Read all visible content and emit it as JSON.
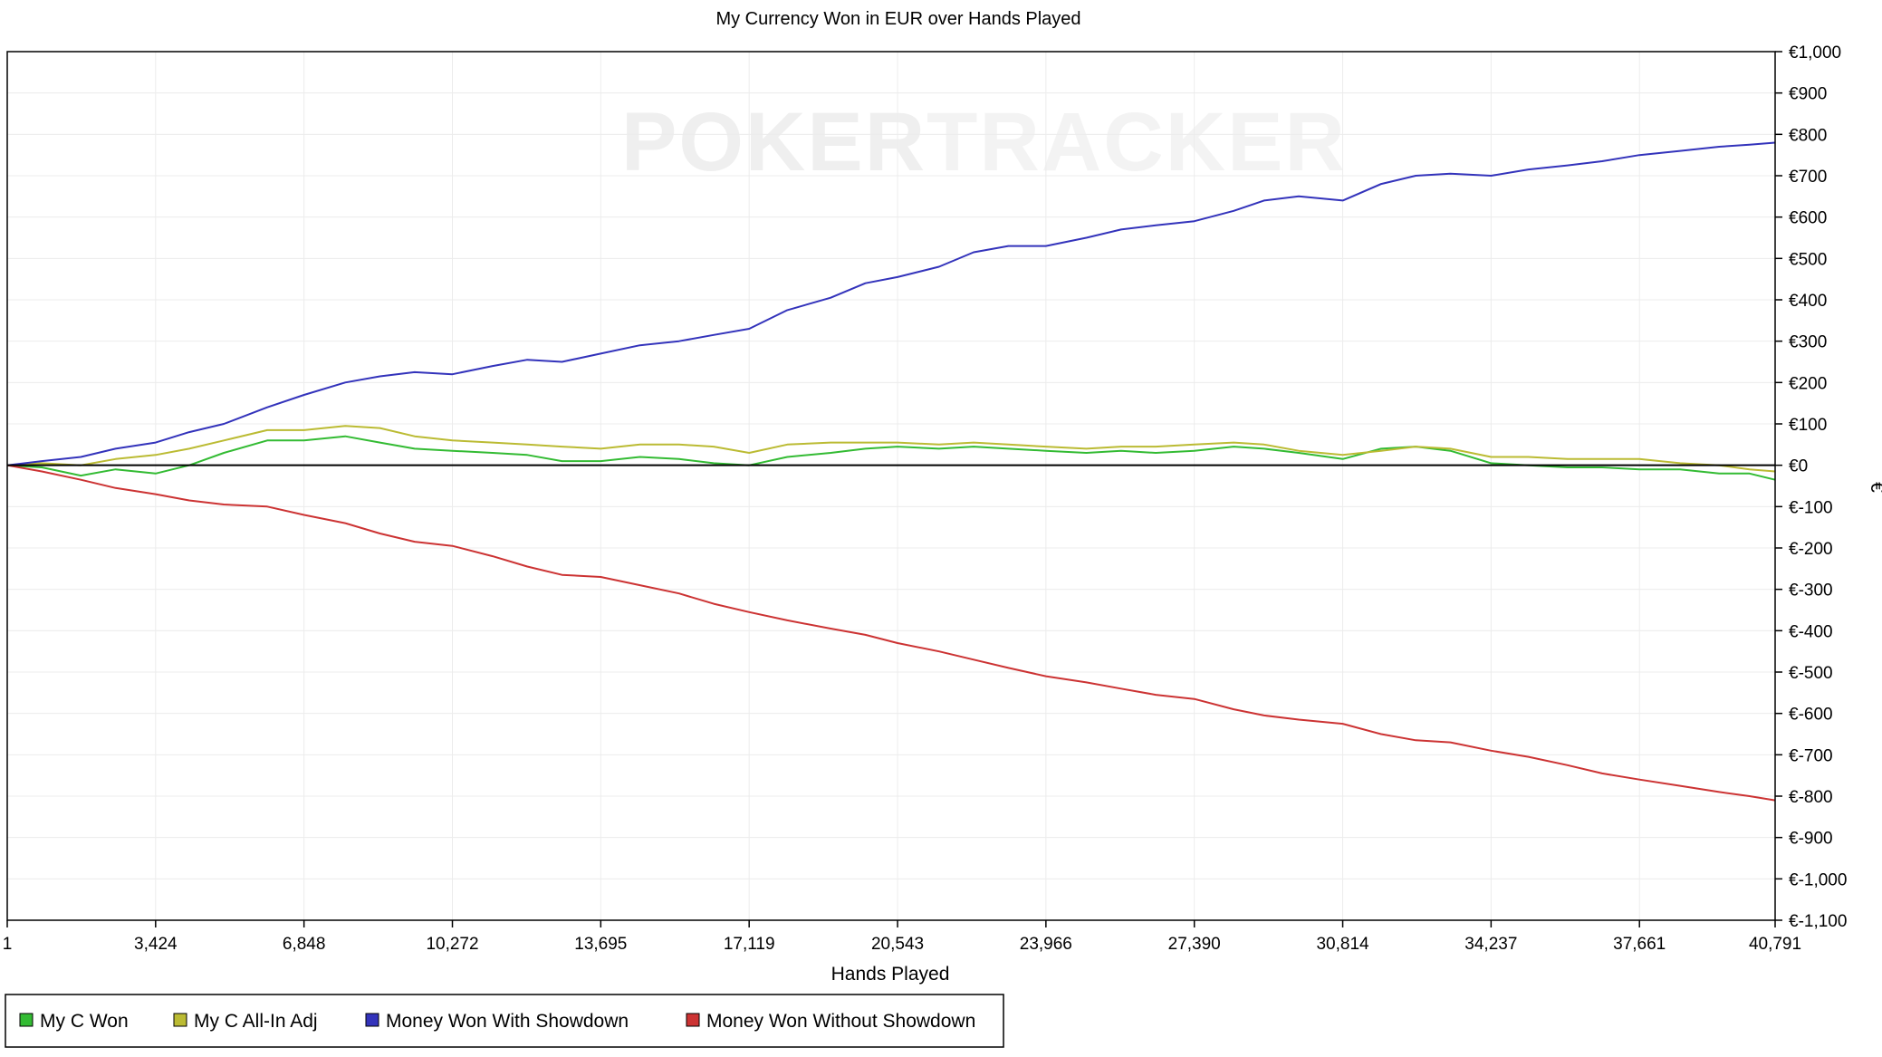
{
  "chart_data": {
    "type": "line",
    "title": "My Currency Won in EUR over Hands Played",
    "xlabel": "Hands Played",
    "ylabel": "€",
    "xlim": [
      1,
      40791
    ],
    "ylim": [
      -1100,
      1000
    ],
    "x_ticks": [
      1,
      3424,
      6848,
      10272,
      13695,
      17119,
      20543,
      23966,
      27390,
      30814,
      34237,
      37661,
      40791
    ],
    "x_tick_labels": [
      "1",
      "3,424",
      "6,848",
      "10,272",
      "13,695",
      "17,119",
      "20,543",
      "23,966",
      "27,390",
      "30,814",
      "34,237",
      "37,661",
      "40,791"
    ],
    "y_ticks": [
      1000,
      900,
      800,
      700,
      600,
      500,
      400,
      300,
      200,
      100,
      0,
      -100,
      -200,
      -300,
      -400,
      -500,
      -600,
      -700,
      -800,
      -900,
      -1000,
      -1100
    ],
    "y_tick_labels": [
      "€1,000",
      "€900",
      "€800",
      "€700",
      "€600",
      "€500",
      "€400",
      "€300",
      "€200",
      "€100",
      "€0",
      "€-100",
      "€-200",
      "€-300",
      "€-400",
      "€-500",
      "€-600",
      "€-700",
      "€-800",
      "€-900",
      "€-1,000",
      "€-1,100"
    ],
    "grid": true,
    "legend_position": "bottom-left",
    "watermark": "POKERTRACKER",
    "series": [
      {
        "name": "My C Won",
        "color": "#33bb33",
        "x": [
          1,
          800,
          1700,
          2500,
          3424,
          4200,
          5000,
          6000,
          6848,
          7800,
          8600,
          9400,
          10272,
          11200,
          12000,
          12800,
          13695,
          14600,
          15500,
          16300,
          17119,
          18000,
          19000,
          19800,
          20543,
          21500,
          22300,
          23100,
          23966,
          24900,
          25700,
          26500,
          27390,
          28300,
          29000,
          29800,
          30814,
          31700,
          32500,
          33300,
          34237,
          35100,
          36000,
          36800,
          37661,
          38600,
          39500,
          40200,
          40791
        ],
        "y": [
          0,
          -5,
          -25,
          -10,
          -20,
          0,
          30,
          60,
          60,
          70,
          55,
          40,
          35,
          30,
          25,
          10,
          10,
          20,
          15,
          5,
          0,
          20,
          30,
          40,
          45,
          40,
          45,
          40,
          35,
          30,
          35,
          30,
          35,
          45,
          40,
          30,
          15,
          40,
          45,
          35,
          5,
          0,
          -5,
          -5,
          -10,
          -10,
          -20,
          -20,
          -35
        ]
      },
      {
        "name": "My C All-In Adj",
        "color": "#bbbb33",
        "x": [
          1,
          800,
          1700,
          2500,
          3424,
          4200,
          5000,
          6000,
          6848,
          7800,
          8600,
          9400,
          10272,
          11200,
          12000,
          12800,
          13695,
          14600,
          15500,
          16300,
          17119,
          18000,
          19000,
          19800,
          20543,
          21500,
          22300,
          23100,
          23966,
          24900,
          25700,
          26500,
          27390,
          28300,
          29000,
          29800,
          30814,
          31700,
          32500,
          33300,
          34237,
          35100,
          36000,
          36800,
          37661,
          38600,
          39500,
          40200,
          40791
        ],
        "y": [
          0,
          5,
          0,
          15,
          25,
          40,
          60,
          85,
          85,
          95,
          90,
          70,
          60,
          55,
          50,
          45,
          40,
          50,
          50,
          45,
          30,
          50,
          55,
          55,
          55,
          50,
          55,
          50,
          45,
          40,
          45,
          45,
          50,
          55,
          50,
          35,
          25,
          35,
          45,
          40,
          20,
          20,
          15,
          15,
          15,
          5,
          0,
          -10,
          -15
        ]
      },
      {
        "name": "Money Won With Showdown",
        "color": "#3333bb",
        "x": [
          1,
          800,
          1700,
          2500,
          3424,
          4200,
          5000,
          6000,
          6848,
          7800,
          8600,
          9400,
          10272,
          11200,
          12000,
          12800,
          13695,
          14600,
          15500,
          16300,
          17119,
          18000,
          19000,
          19800,
          20543,
          21500,
          22300,
          23100,
          23966,
          24900,
          25700,
          26500,
          27390,
          28300,
          29000,
          29800,
          30814,
          31700,
          32500,
          33300,
          34237,
          35100,
          36000,
          36800,
          37661,
          38600,
          39500,
          40200,
          40791
        ],
        "y": [
          0,
          10,
          20,
          40,
          55,
          80,
          100,
          140,
          170,
          200,
          215,
          225,
          220,
          240,
          255,
          250,
          270,
          290,
          300,
          315,
          330,
          375,
          405,
          440,
          455,
          480,
          515,
          530,
          530,
          550,
          570,
          580,
          590,
          615,
          640,
          650,
          640,
          680,
          700,
          705,
          700,
          715,
          725,
          735,
          750,
          760,
          770,
          775,
          780
        ]
      },
      {
        "name": "Money Won Without Showdown",
        "color": "#cc3333",
        "x": [
          1,
          800,
          1700,
          2500,
          3424,
          4200,
          5000,
          6000,
          6848,
          7800,
          8600,
          9400,
          10272,
          11200,
          12000,
          12800,
          13695,
          14600,
          15500,
          16300,
          17119,
          18000,
          19000,
          19800,
          20543,
          21500,
          22300,
          23100,
          23966,
          24900,
          25700,
          26500,
          27390,
          28300,
          29000,
          29800,
          30814,
          31700,
          32500,
          33300,
          34237,
          35100,
          36000,
          36800,
          37661,
          38600,
          39500,
          40200,
          40791
        ],
        "y": [
          0,
          -15,
          -35,
          -55,
          -70,
          -85,
          -95,
          -100,
          -120,
          -140,
          -165,
          -185,
          -195,
          -220,
          -245,
          -265,
          -270,
          -290,
          -310,
          -335,
          -355,
          -375,
          -395,
          -410,
          -430,
          -450,
          -470,
          -490,
          -510,
          -525,
          -540,
          -555,
          -565,
          -590,
          -605,
          -615,
          -625,
          -650,
          -665,
          -670,
          -690,
          -705,
          -725,
          -745,
          -760,
          -775,
          -790,
          -800,
          -810
        ]
      }
    ]
  }
}
